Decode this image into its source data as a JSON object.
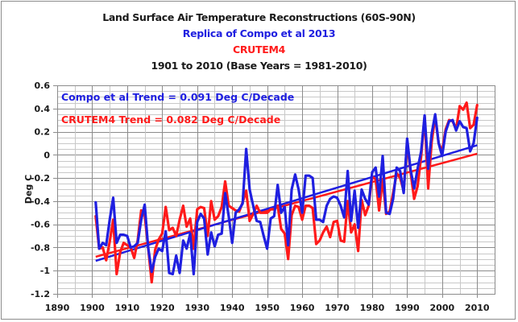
{
  "chart_data": {
    "type": "line",
    "title": "Land Surface Air Temperature Reconstructions (60S-90N)",
    "subtitle_lines": [
      {
        "text": "Replica of Compo et al 2013",
        "color": "#1f1fe0"
      },
      {
        "text": "CRUTEM4",
        "color": "#ff1a1a"
      },
      {
        "text": "1901 to 2010 (Base Years = 1981-2010)",
        "color": "#1a1a1a"
      }
    ],
    "xlabel": "",
    "ylabel": "Deg C",
    "xlim": [
      1890,
      2015
    ],
    "ylim": [
      -1.2,
      0.6
    ],
    "xticks": [
      1890,
      1900,
      1910,
      1920,
      1930,
      1940,
      1950,
      1960,
      1970,
      1980,
      1990,
      2000,
      2010
    ],
    "yticks": [
      -1.2,
      -1,
      -0.8,
      -0.6,
      -0.4,
      -0.2,
      0,
      0.2,
      0.4,
      0.6
    ],
    "ytick_labels": [
      "-1.2",
      "-1",
      "-0.8",
      "-0.6",
      "-0.4",
      "-0.2",
      "0",
      "0.2",
      "0.4",
      "0.6"
    ],
    "grid": true,
    "legend_placement": "top-left",
    "annotations": [
      {
        "text": "Compo et al Trend = 0.091 Deg C/Decade",
        "color": "#1f1fe0"
      },
      {
        "text": "CRUTEM4 Trend = 0.082 Deg C/Decade",
        "color": "#ff1a1a"
      }
    ],
    "x": [
      1901,
      1902,
      1903,
      1904,
      1905,
      1906,
      1907,
      1908,
      1909,
      1910,
      1911,
      1912,
      1913,
      1914,
      1915,
      1916,
      1917,
      1918,
      1919,
      1920,
      1921,
      1922,
      1923,
      1924,
      1925,
      1926,
      1927,
      1928,
      1929,
      1930,
      1931,
      1932,
      1933,
      1934,
      1935,
      1936,
      1937,
      1938,
      1939,
      1940,
      1941,
      1942,
      1943,
      1944,
      1945,
      1946,
      1947,
      1948,
      1949,
      1950,
      1951,
      1952,
      1953,
      1954,
      1955,
      1956,
      1957,
      1958,
      1959,
      1960,
      1961,
      1962,
      1963,
      1964,
      1965,
      1966,
      1967,
      1968,
      1969,
      1970,
      1971,
      1972,
      1973,
      1974,
      1975,
      1976,
      1977,
      1978,
      1979,
      1980,
      1981,
      1982,
      1983,
      1984,
      1985,
      1986,
      1987,
      1988,
      1989,
      1990,
      1991,
      1992,
      1993,
      1994,
      1995,
      1996,
      1997,
      1998,
      1999,
      2000,
      2001,
      2002,
      2003,
      2004,
      2005,
      2006,
      2007,
      2008,
      2009,
      2010
    ],
    "series": [
      {
        "name": "CRUTEM4",
        "color": "#ff1a1a",
        "values": [
          -0.53,
          -0.81,
          -0.8,
          -0.91,
          -0.75,
          -0.56,
          -1.03,
          -0.84,
          -0.76,
          -0.78,
          -0.8,
          -0.89,
          -0.74,
          -0.48,
          -0.52,
          -0.8,
          -1.1,
          -0.82,
          -0.73,
          -0.68,
          -0.45,
          -0.65,
          -0.63,
          -0.7,
          -0.56,
          -0.44,
          -0.62,
          -0.55,
          -0.81,
          -0.47,
          -0.45,
          -0.46,
          -0.7,
          -0.4,
          -0.56,
          -0.53,
          -0.45,
          -0.23,
          -0.44,
          -0.46,
          -0.48,
          -0.49,
          -0.41,
          -0.31,
          -0.57,
          -0.51,
          -0.44,
          -0.5,
          -0.5,
          -0.5,
          -0.47,
          -0.47,
          -0.44,
          -0.64,
          -0.68,
          -0.9,
          -0.52,
          -0.44,
          -0.45,
          -0.56,
          -0.44,
          -0.44,
          -0.46,
          -0.77,
          -0.74,
          -0.67,
          -0.62,
          -0.71,
          -0.58,
          -0.57,
          -0.74,
          -0.75,
          -0.4,
          -0.67,
          -0.6,
          -0.83,
          -0.39,
          -0.52,
          -0.44,
          -0.19,
          -0.21,
          -0.48,
          -0.21,
          -0.51,
          -0.49,
          -0.33,
          -0.16,
          -0.2,
          -0.31,
          0.1,
          -0.15,
          -0.38,
          -0.27,
          -0.01,
          0.33,
          -0.29,
          0.11,
          0.33,
          0.1,
          0.03,
          0.22,
          0.3,
          0.29,
          0.22,
          0.42,
          0.39,
          0.45,
          0.23,
          0.26,
          0.43
        ],
        "trend": {
          "per_decade": 0.082,
          "start": -0.88,
          "end": 0.01
        }
      },
      {
        "name": "Compo et al (Replica)",
        "color": "#1f1fe0",
        "values": [
          -0.41,
          -0.81,
          -0.76,
          -0.78,
          -0.56,
          -0.37,
          -0.76,
          -0.69,
          -0.69,
          -0.7,
          -0.8,
          -0.79,
          -0.76,
          -0.56,
          -0.43,
          -0.8,
          -1.01,
          -0.88,
          -0.81,
          -0.83,
          -0.66,
          -1.02,
          -1.03,
          -0.87,
          -1.02,
          -0.74,
          -0.81,
          -0.68,
          -1.03,
          -0.58,
          -0.51,
          -0.55,
          -0.86,
          -0.67,
          -0.79,
          -0.69,
          -0.68,
          -0.33,
          -0.53,
          -0.76,
          -0.5,
          -0.47,
          -0.42,
          0.05,
          -0.3,
          -0.44,
          -0.57,
          -0.58,
          -0.7,
          -0.81,
          -0.55,
          -0.53,
          -0.26,
          -0.5,
          -0.45,
          -0.78,
          -0.3,
          -0.17,
          -0.3,
          -0.5,
          -0.18,
          -0.18,
          -0.2,
          -0.56,
          -0.56,
          -0.58,
          -0.44,
          -0.38,
          -0.36,
          -0.37,
          -0.44,
          -0.54,
          -0.14,
          -0.57,
          -0.31,
          -0.63,
          -0.3,
          -0.38,
          -0.43,
          -0.15,
          -0.11,
          -0.36,
          -0.01,
          -0.5,
          -0.51,
          -0.38,
          -0.11,
          -0.14,
          -0.33,
          0.14,
          -0.13,
          -0.29,
          -0.12,
          0.03,
          0.34,
          -0.12,
          0.18,
          0.35,
          0.1,
          -0.01,
          0.2,
          0.29,
          0.3,
          0.21,
          0.29,
          0.24,
          0.23,
          0.03,
          0.1,
          0.32
        ],
        "trend": {
          "per_decade": 0.091,
          "start": -0.915,
          "end": 0.083
        }
      }
    ]
  }
}
